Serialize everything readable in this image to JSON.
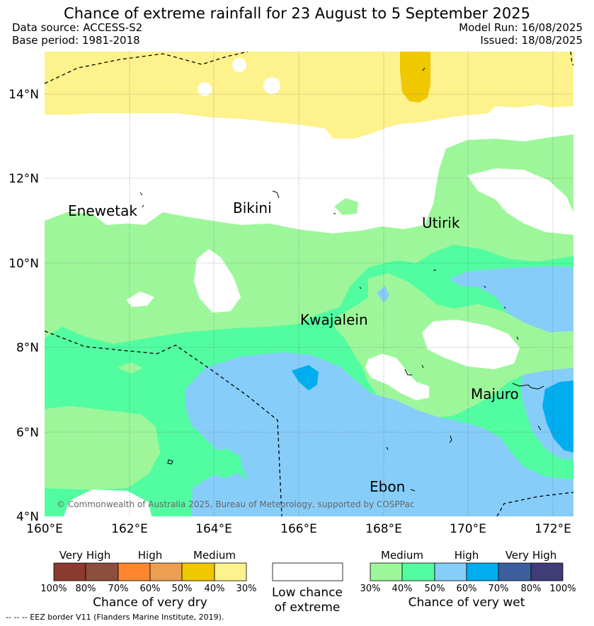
{
  "header": {
    "title": "Chance of extreme rainfall for 23 August to 5 September 2025",
    "data_source": "Data source: ACCESS-S2",
    "base_period": "Base period: 1981-2018",
    "model_run": "Model Run: 16/08/2025",
    "issued": "Issued: 18/08/2025"
  },
  "map": {
    "lat_labels": [
      "14°N",
      "12°N",
      "10°N",
      "8°N",
      "6°N",
      "4°N"
    ],
    "lon_labels": [
      "160°E",
      "162°E",
      "164°E",
      "166°E",
      "168°E",
      "170°E",
      "172°E"
    ],
    "places": [
      "Enewetak",
      "Bikini",
      "Utirik",
      "Kwajalein",
      "Majuro",
      "Ebon"
    ],
    "copyright": "© Commonwealth of Australia 2025, Bureau of Meteorology, supported by COSPPac",
    "colors": {
      "dry_medium_light": "#fdf28c",
      "dry_medium": "#f0c800",
      "wet_medium": "#9df79a",
      "wet_high_light": "#52fca1",
      "wet_high": "#87cdfa",
      "wet_very_high_light": "#00aeef"
    }
  },
  "legend": {
    "dry": {
      "headers": [
        "Very High",
        "High",
        "Medium"
      ],
      "colors": [
        "#8b3a30",
        "#8c4e3d",
        "#ff8630",
        "#ec9f50",
        "#f0c800",
        "#fdf28c"
      ],
      "ticks": [
        "100%",
        "80%",
        "70%",
        "60%",
        "50%",
        "40%",
        "30%"
      ],
      "caption": "Chance of very dry"
    },
    "low": {
      "caption_line1": "Low chance",
      "caption_line2": "of extreme"
    },
    "wet": {
      "headers": [
        "Medium",
        "High",
        "Very High"
      ],
      "colors": [
        "#9df79a",
        "#52fca1",
        "#87cdfa",
        "#00aeef",
        "#3a5f9c",
        "#3f3c78"
      ],
      "ticks": [
        "30%",
        "40%",
        "50%",
        "60%",
        "70%",
        "80%",
        "100%"
      ],
      "caption": "Chance of very wet"
    }
  },
  "footer": {
    "eez_note": "-- -- -- EEZ border V11 (Flanders Marine Institute, 2019)."
  }
}
